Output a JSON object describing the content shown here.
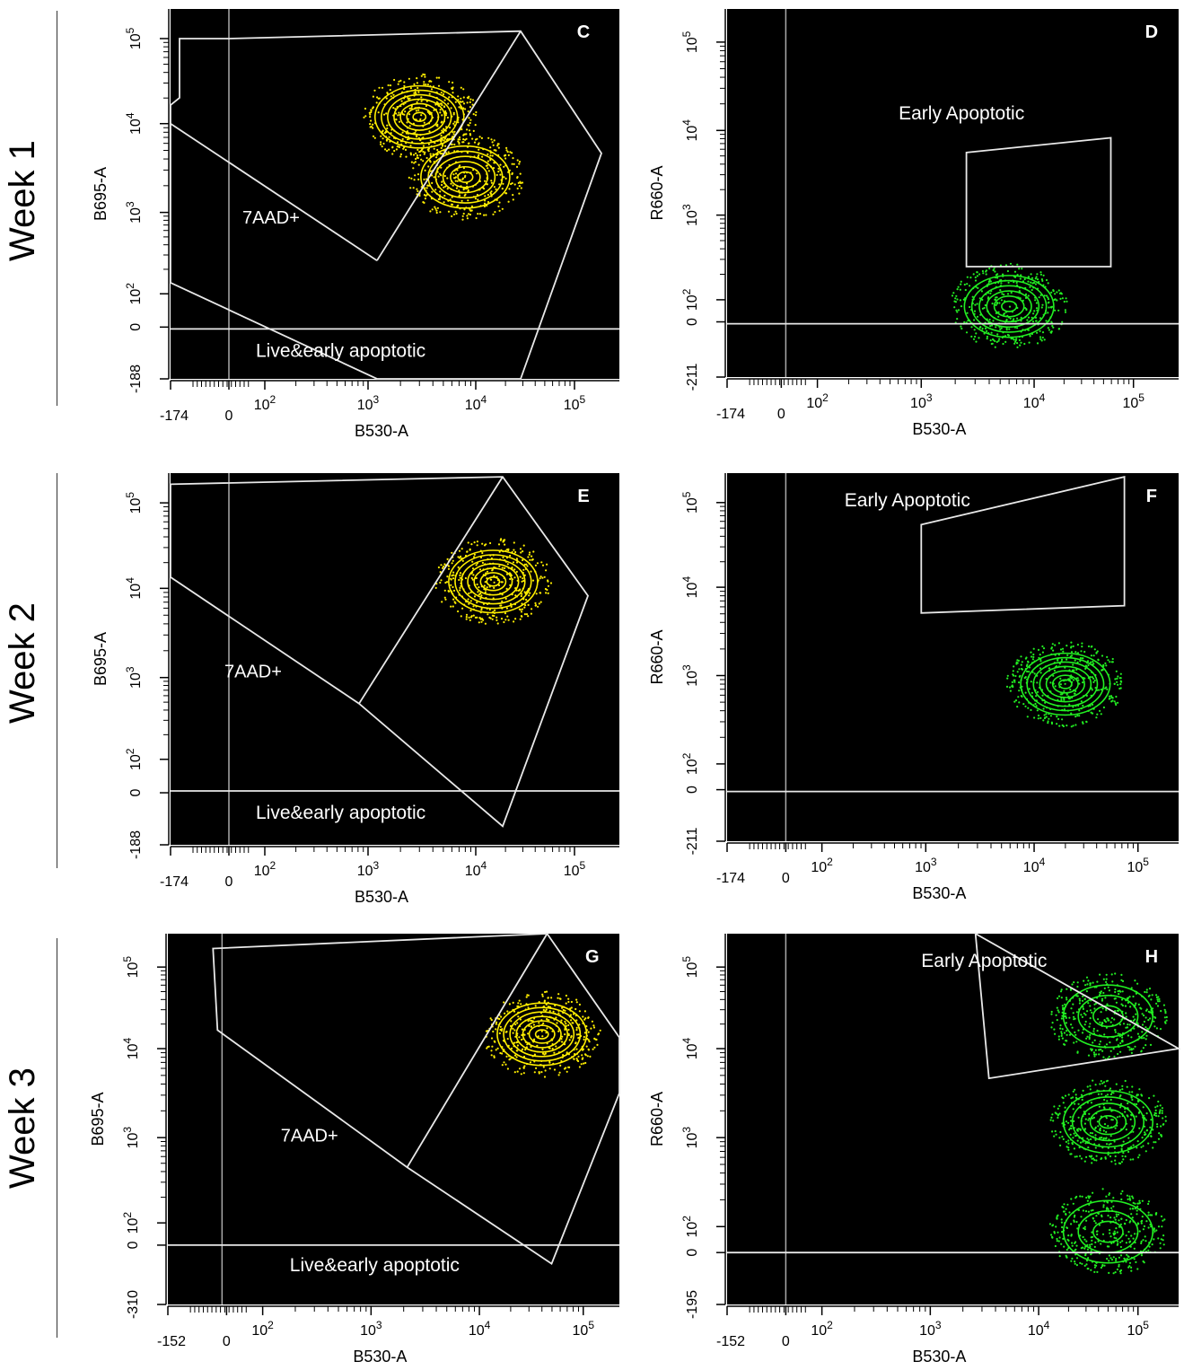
{
  "figure": {
    "weeks": [
      "Week 1",
      "Week 2",
      "Week 3"
    ]
  },
  "chart_data": [
    {
      "panel": "C",
      "week": "Week 1",
      "type": "contour",
      "xlabel": "B530-A",
      "ylabel": "B695-A",
      "x_ticks": [
        "-174",
        "0",
        "10^2",
        "10^3",
        "10^4",
        "10^5"
      ],
      "y_ticks": [
        "-188",
        "0",
        "10^2",
        "10^3",
        "10^4",
        "10^5"
      ],
      "color": "#ffee00",
      "gates": [
        "7AAD+",
        "Live&early apoptotic"
      ],
      "populations": [
        {
          "center": [
            3000,
            12000
          ],
          "levels": 7
        },
        {
          "center": [
            8000,
            2500
          ],
          "levels": 6
        }
      ]
    },
    {
      "panel": "D",
      "week": "Week 1",
      "type": "contour",
      "xlabel": "B530-A",
      "ylabel": "R660-A",
      "x_ticks": [
        "-174",
        "0",
        "10^2",
        "10^3",
        "10^4",
        "10^5"
      ],
      "y_ticks": [
        "-211",
        "0",
        "10^2",
        "10^3",
        "10^4",
        "10^5"
      ],
      "color": "#22ee22",
      "gates": [
        "Early Apoptotic"
      ],
      "populations": [
        {
          "center": [
            6000,
            70
          ],
          "levels": 6
        }
      ]
    },
    {
      "panel": "E",
      "week": "Week 2",
      "type": "contour",
      "xlabel": "B530-A",
      "ylabel": "B695-A",
      "x_ticks": [
        "-174",
        "0",
        "10^2",
        "10^3",
        "10^4",
        "10^5"
      ],
      "y_ticks": [
        "-188",
        "0",
        "10^2",
        "10^3",
        "10^4",
        "10^5"
      ],
      "color": "#ffee00",
      "gates": [
        "7AAD+",
        "Live&early apoptotic"
      ],
      "populations": [
        {
          "center": [
            15000,
            12000
          ],
          "levels": 7
        }
      ]
    },
    {
      "panel": "F",
      "week": "Week 2",
      "type": "contour",
      "xlabel": "B530-A",
      "ylabel": "R660-A",
      "x_ticks": [
        "-174",
        "0",
        "10^2",
        "10^3",
        "10^4",
        "10^5"
      ],
      "y_ticks": [
        "-211",
        "0",
        "10^2",
        "10^3",
        "10^4",
        "10^5"
      ],
      "color": "#22ee22",
      "gates": [
        "Early Apoptotic"
      ],
      "populations": [
        {
          "center": [
            20000,
            800
          ],
          "levels": 7
        }
      ]
    },
    {
      "panel": "G",
      "week": "Week 3",
      "type": "contour",
      "xlabel": "B530-A",
      "ylabel": "B695-A",
      "x_ticks": [
        "-152",
        "0",
        "10^2",
        "10^3",
        "10^4",
        "10^5"
      ],
      "y_ticks": [
        "-310",
        "0",
        "10^2",
        "10^3",
        "10^4",
        "10^5"
      ],
      "color": "#ffee00",
      "gates": [
        "7AAD+",
        "Live&early apoptotic"
      ],
      "populations": [
        {
          "center": [
            40000,
            15000
          ],
          "levels": 7
        }
      ]
    },
    {
      "panel": "H",
      "week": "Week 3",
      "type": "contour",
      "xlabel": "B530-A",
      "ylabel": "R660-A",
      "x_ticks": [
        "-152",
        "0",
        "10^2",
        "10^3",
        "10^4",
        "10^5"
      ],
      "y_ticks": [
        "-195",
        "0",
        "10^2",
        "10^3",
        "10^4",
        "10^5"
      ],
      "color": "#22ee22",
      "gates": [
        "Early Apoptotic"
      ],
      "populations": [
        {
          "center": [
            50000,
            1500
          ],
          "levels": 5
        },
        {
          "center": [
            50000,
            25000
          ],
          "levels": 3
        },
        {
          "center": [
            50000,
            80
          ],
          "levels": 3
        }
      ]
    }
  ]
}
